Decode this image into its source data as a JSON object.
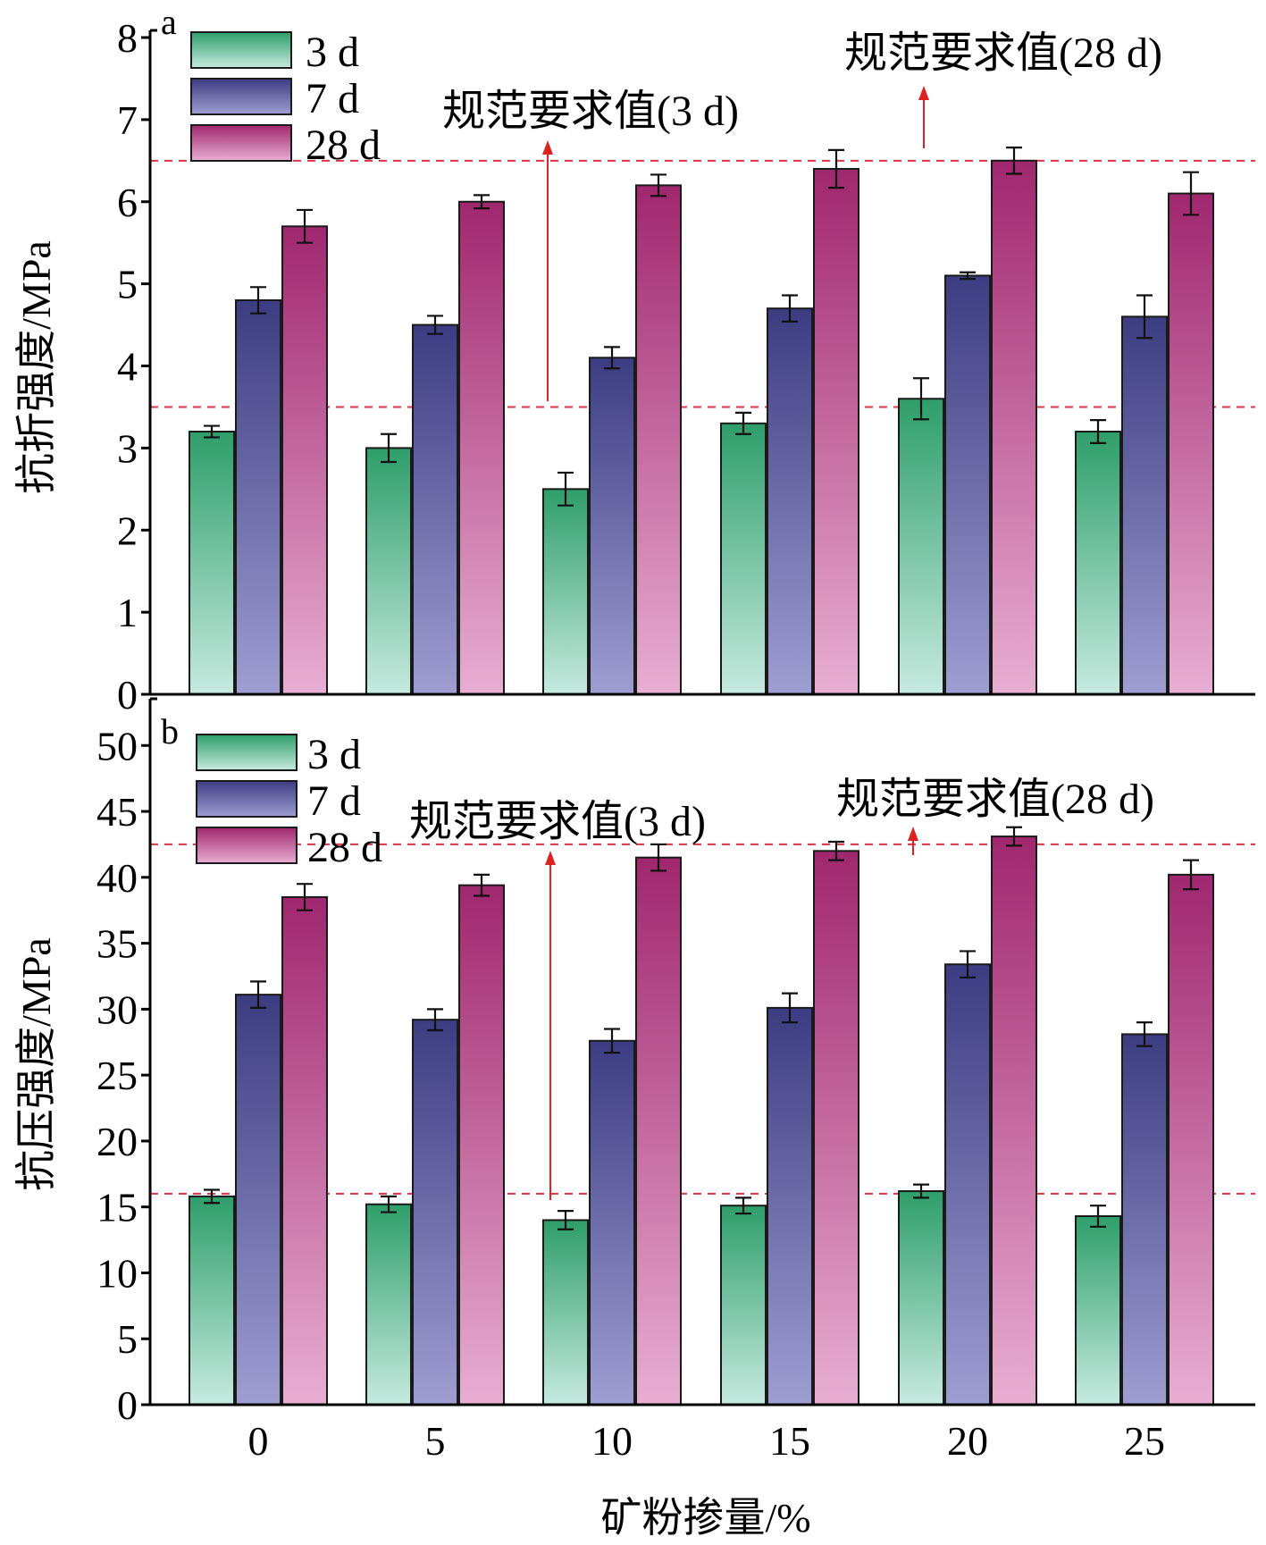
{
  "chart_data": [
    {
      "panel_label": "a",
      "type": "bar",
      "ylabel": "抗折强度/MPa",
      "ylim": [
        0,
        8
      ],
      "yticks": [
        "0",
        "1",
        "2",
        "3",
        "4",
        "5",
        "6",
        "7",
        "8"
      ],
      "categories": [
        "0",
        "5",
        "10",
        "15",
        "20",
        "25"
      ],
      "series": [
        {
          "name": "3 d",
          "values": [
            3.2,
            3.0,
            2.5,
            3.3,
            3.6,
            3.2
          ],
          "errors": [
            0.07,
            0.17,
            0.2,
            0.13,
            0.25,
            0.14
          ]
        },
        {
          "name": "7 d",
          "values": [
            4.8,
            4.5,
            4.1,
            4.7,
            5.1,
            4.6
          ],
          "errors": [
            0.16,
            0.11,
            0.13,
            0.16,
            0.04,
            0.26
          ]
        },
        {
          "name": "28 d",
          "values": [
            5.7,
            6.0,
            6.2,
            6.4,
            6.5,
            6.1
          ],
          "errors": [
            0.2,
            0.08,
            0.13,
            0.23,
            0.16,
            0.26
          ]
        }
      ],
      "reference_lines": [
        {
          "label": "规范要求值(3 d)",
          "value": 3.5
        },
        {
          "label": "规范要求值(28 d)",
          "value": 6.5
        }
      ],
      "legend_position": "top-left",
      "grid": false
    },
    {
      "panel_label": "b",
      "type": "bar",
      "ylabel": "抗压强度/MPa",
      "xlabel": "矿粉掺量/%",
      "ylim": [
        0,
        53
      ],
      "yticks": [
        "0",
        "5",
        "10",
        "15",
        "20",
        "25",
        "30",
        "35",
        "40",
        "45",
        "50"
      ],
      "categories": [
        "0",
        "5",
        "10",
        "15",
        "20",
        "25"
      ],
      "series": [
        {
          "name": "3 d",
          "values": [
            15.8,
            15.2,
            14.0,
            15.1,
            16.2,
            14.3
          ],
          "errors": [
            0.5,
            0.6,
            0.7,
            0.6,
            0.5,
            0.8
          ]
        },
        {
          "name": "7 d",
          "values": [
            31.1,
            29.2,
            27.6,
            30.1,
            33.4,
            28.1
          ],
          "errors": [
            1.0,
            0.8,
            0.9,
            1.1,
            1.0,
            0.9
          ]
        },
        {
          "name": "28 d",
          "values": [
            38.5,
            39.4,
            41.5,
            42.0,
            43.1,
            40.2
          ],
          "errors": [
            1.0,
            0.8,
            1.0,
            0.7,
            0.7,
            1.1
          ]
        }
      ],
      "reference_lines": [
        {
          "label": "规范要求值(3 d)",
          "value": 16
        },
        {
          "label": "规范要求值(28 d)",
          "value": 42.5
        }
      ],
      "legend_position": "top-left",
      "grid": false
    }
  ],
  "colors": {
    "series_top": [
      "#2e9e6a",
      "#3c3c82",
      "#a0276e"
    ],
    "series_bottom": [
      "#c6eae0",
      "#9e9ed2",
      "#e8aed2"
    ],
    "reference_line": "#dd3344",
    "arrow": "#dd2222",
    "axis": "#000000"
  }
}
